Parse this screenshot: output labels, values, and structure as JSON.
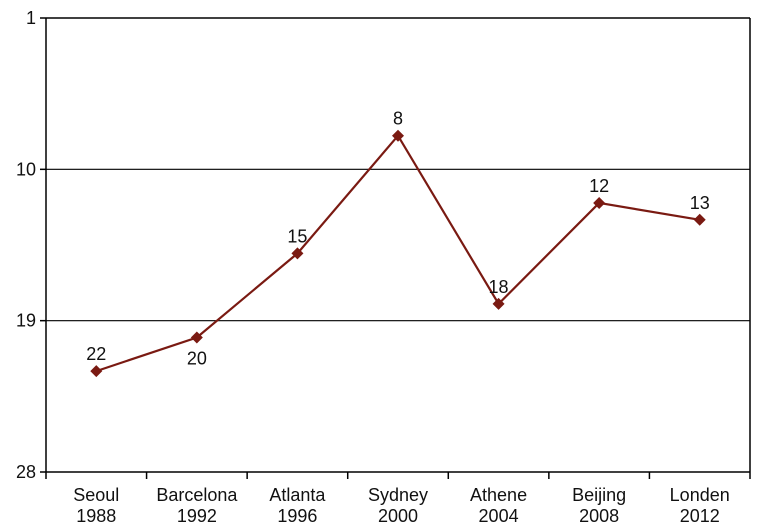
{
  "chart_data": {
    "type": "line",
    "title": "",
    "xlabel": "",
    "ylabel": "",
    "y_axis": {
      "reversed": true,
      "ylim": [
        1,
        28
      ],
      "ticks": [
        1,
        10,
        19,
        28
      ]
    },
    "categories": [
      [
        "Seoul",
        "1988"
      ],
      [
        "Barcelona",
        "1992"
      ],
      [
        "Atlanta",
        "1996"
      ],
      [
        "Sydney",
        "2000"
      ],
      [
        "Athene",
        "2004"
      ],
      [
        "Beijing",
        "2008"
      ],
      [
        "Londen",
        "2012"
      ]
    ],
    "series": [
      {
        "values": [
          22,
          20,
          15,
          8,
          18,
          12,
          13
        ]
      }
    ],
    "data_label_position": [
      "above",
      "below",
      "above",
      "above",
      "above",
      "above",
      "above"
    ],
    "grid": "horizontal",
    "legend": "none",
    "colors": {
      "line": "#7a1a12",
      "marker": "#7a1a12",
      "grid": "#000000",
      "axis": "#000000"
    }
  }
}
